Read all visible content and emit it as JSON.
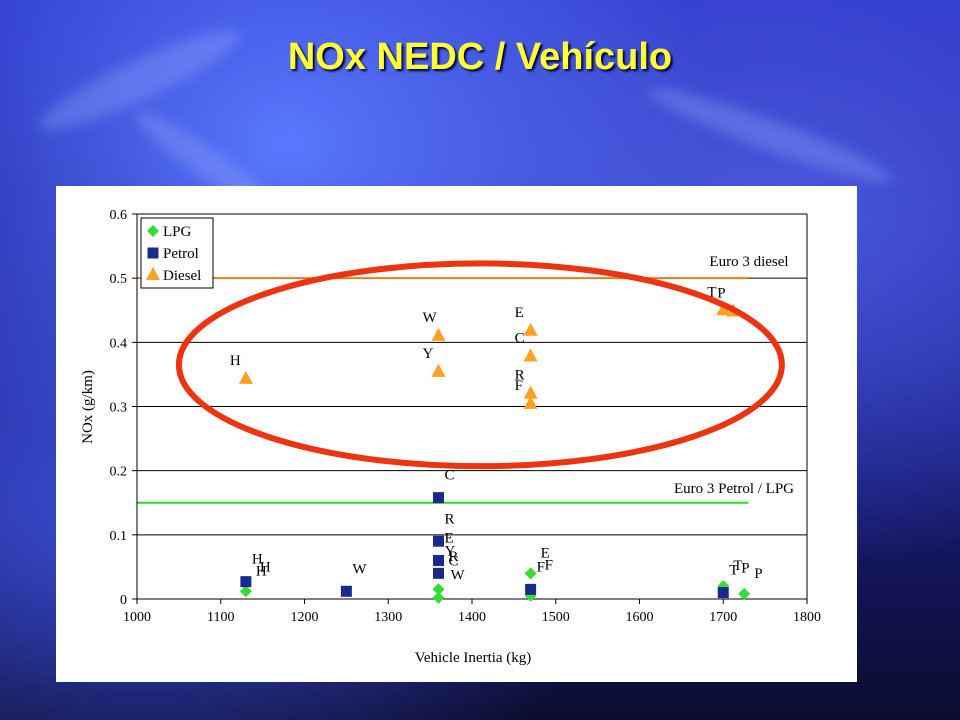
{
  "slide": {
    "title": "NOx NEDC / Vehículo"
  },
  "chart_data": {
    "type": "scatter",
    "title": "",
    "xlabel": "Vehicle Inertia (kg)",
    "ylabel": "NOx (g/km)",
    "xlim": [
      1000,
      1800
    ],
    "ylim": [
      0,
      0.6
    ],
    "xticks": [
      1000,
      1100,
      1200,
      1300,
      1400,
      1500,
      1600,
      1700,
      1800
    ],
    "yticks": [
      0,
      0.1,
      0.2,
      0.3,
      0.4,
      0.5,
      0.6
    ],
    "ytick_labels": [
      "0",
      "0.1",
      "0.2",
      "0.3",
      "0.4",
      "0.5",
      "0.6"
    ],
    "grid": "horizontal",
    "legend_position": "top-left",
    "series": [
      {
        "name": "LPG",
        "marker": "diamond",
        "color": "#33dd33",
        "points": [
          {
            "x": 1130,
            "y": 0.012,
            "label": "H"
          },
          {
            "x": 1360,
            "y": 0.015,
            "label": ""
          },
          {
            "x": 1360,
            "y": 0.002,
            "label": ""
          },
          {
            "x": 1470,
            "y": 0.04,
            "label": "E"
          },
          {
            "x": 1470,
            "y": 0.005,
            "label": ""
          },
          {
            "x": 1700,
            "y": 0.02,
            "label": "T"
          },
          {
            "x": 1725,
            "y": 0.008,
            "label": "P"
          }
        ]
      },
      {
        "name": "Petrol",
        "marker": "square",
        "color": "#1a2a8c",
        "points": [
          {
            "x": 1130,
            "y": 0.027,
            "label": "H"
          },
          {
            "x": 1250,
            "y": 0.012,
            "label": "W"
          },
          {
            "x": 1360,
            "y": 0.158,
            "label": "C"
          },
          {
            "x": 1360,
            "y": 0.09,
            "label": "R"
          },
          {
            "x": 1360,
            "y": 0.06,
            "label": "E"
          },
          {
            "x": 1360,
            "y": 0.04,
            "label": "Y"
          },
          {
            "x": 1470,
            "y": 0.015,
            "label": "F"
          },
          {
            "x": 1700,
            "y": 0.01,
            "label": "T"
          }
        ]
      },
      {
        "name": "Diesel",
        "marker": "triangle",
        "color": "#ffa020",
        "points": [
          {
            "x": 1130,
            "y": 0.343,
            "label": "H"
          },
          {
            "x": 1360,
            "y": 0.41,
            "label": "W"
          },
          {
            "x": 1360,
            "y": 0.354,
            "label": "Y"
          },
          {
            "x": 1470,
            "y": 0.418,
            "label": "E"
          },
          {
            "x": 1470,
            "y": 0.378,
            "label": "C"
          },
          {
            "x": 1470,
            "y": 0.32,
            "label": "R"
          },
          {
            "x": 1470,
            "y": 0.304,
            "label": "F"
          },
          {
            "x": 1700,
            "y": 0.45,
            "label": "T"
          },
          {
            "x": 1712,
            "y": 0.448,
            "label": "P"
          }
        ]
      }
    ],
    "extra_point_labels": [
      {
        "x": 1360,
        "y": 0.05,
        "text": "R",
        "dx": 10,
        "dy": -6
      },
      {
        "x": 1360,
        "y": 0.04,
        "text": "C",
        "dx": 10,
        "dy": -8
      },
      {
        "x": 1360,
        "y": 0.04,
        "text": "W",
        "dx": 12,
        "dy": 6
      },
      {
        "x": 1470,
        "y": 0.015,
        "text": "F",
        "dx": 14,
        "dy": -20
      },
      {
        "x": 1700,
        "y": 0.01,
        "text": "P",
        "dx": 18,
        "dy": -20
      },
      {
        "x": 1130,
        "y": 0.027,
        "text": "H",
        "dx": 14,
        "dy": -10
      }
    ],
    "reference_lines": [
      {
        "name": "Euro 3 diesel",
        "y": 0.5,
        "color": "#e87d1a",
        "x_start": 1000,
        "x_end": 1730
      },
      {
        "name": "Euro 3 Petrol / LPG",
        "y": 0.15,
        "color": "#22dd22",
        "x_start": 1000,
        "x_end": 1730
      }
    ],
    "annotations": [
      {
        "type": "ellipse",
        "color": "#ee3311",
        "cx": 1410,
        "cy": 0.365,
        "rx_data": 360,
        "ry_data": 0.158
      }
    ]
  }
}
